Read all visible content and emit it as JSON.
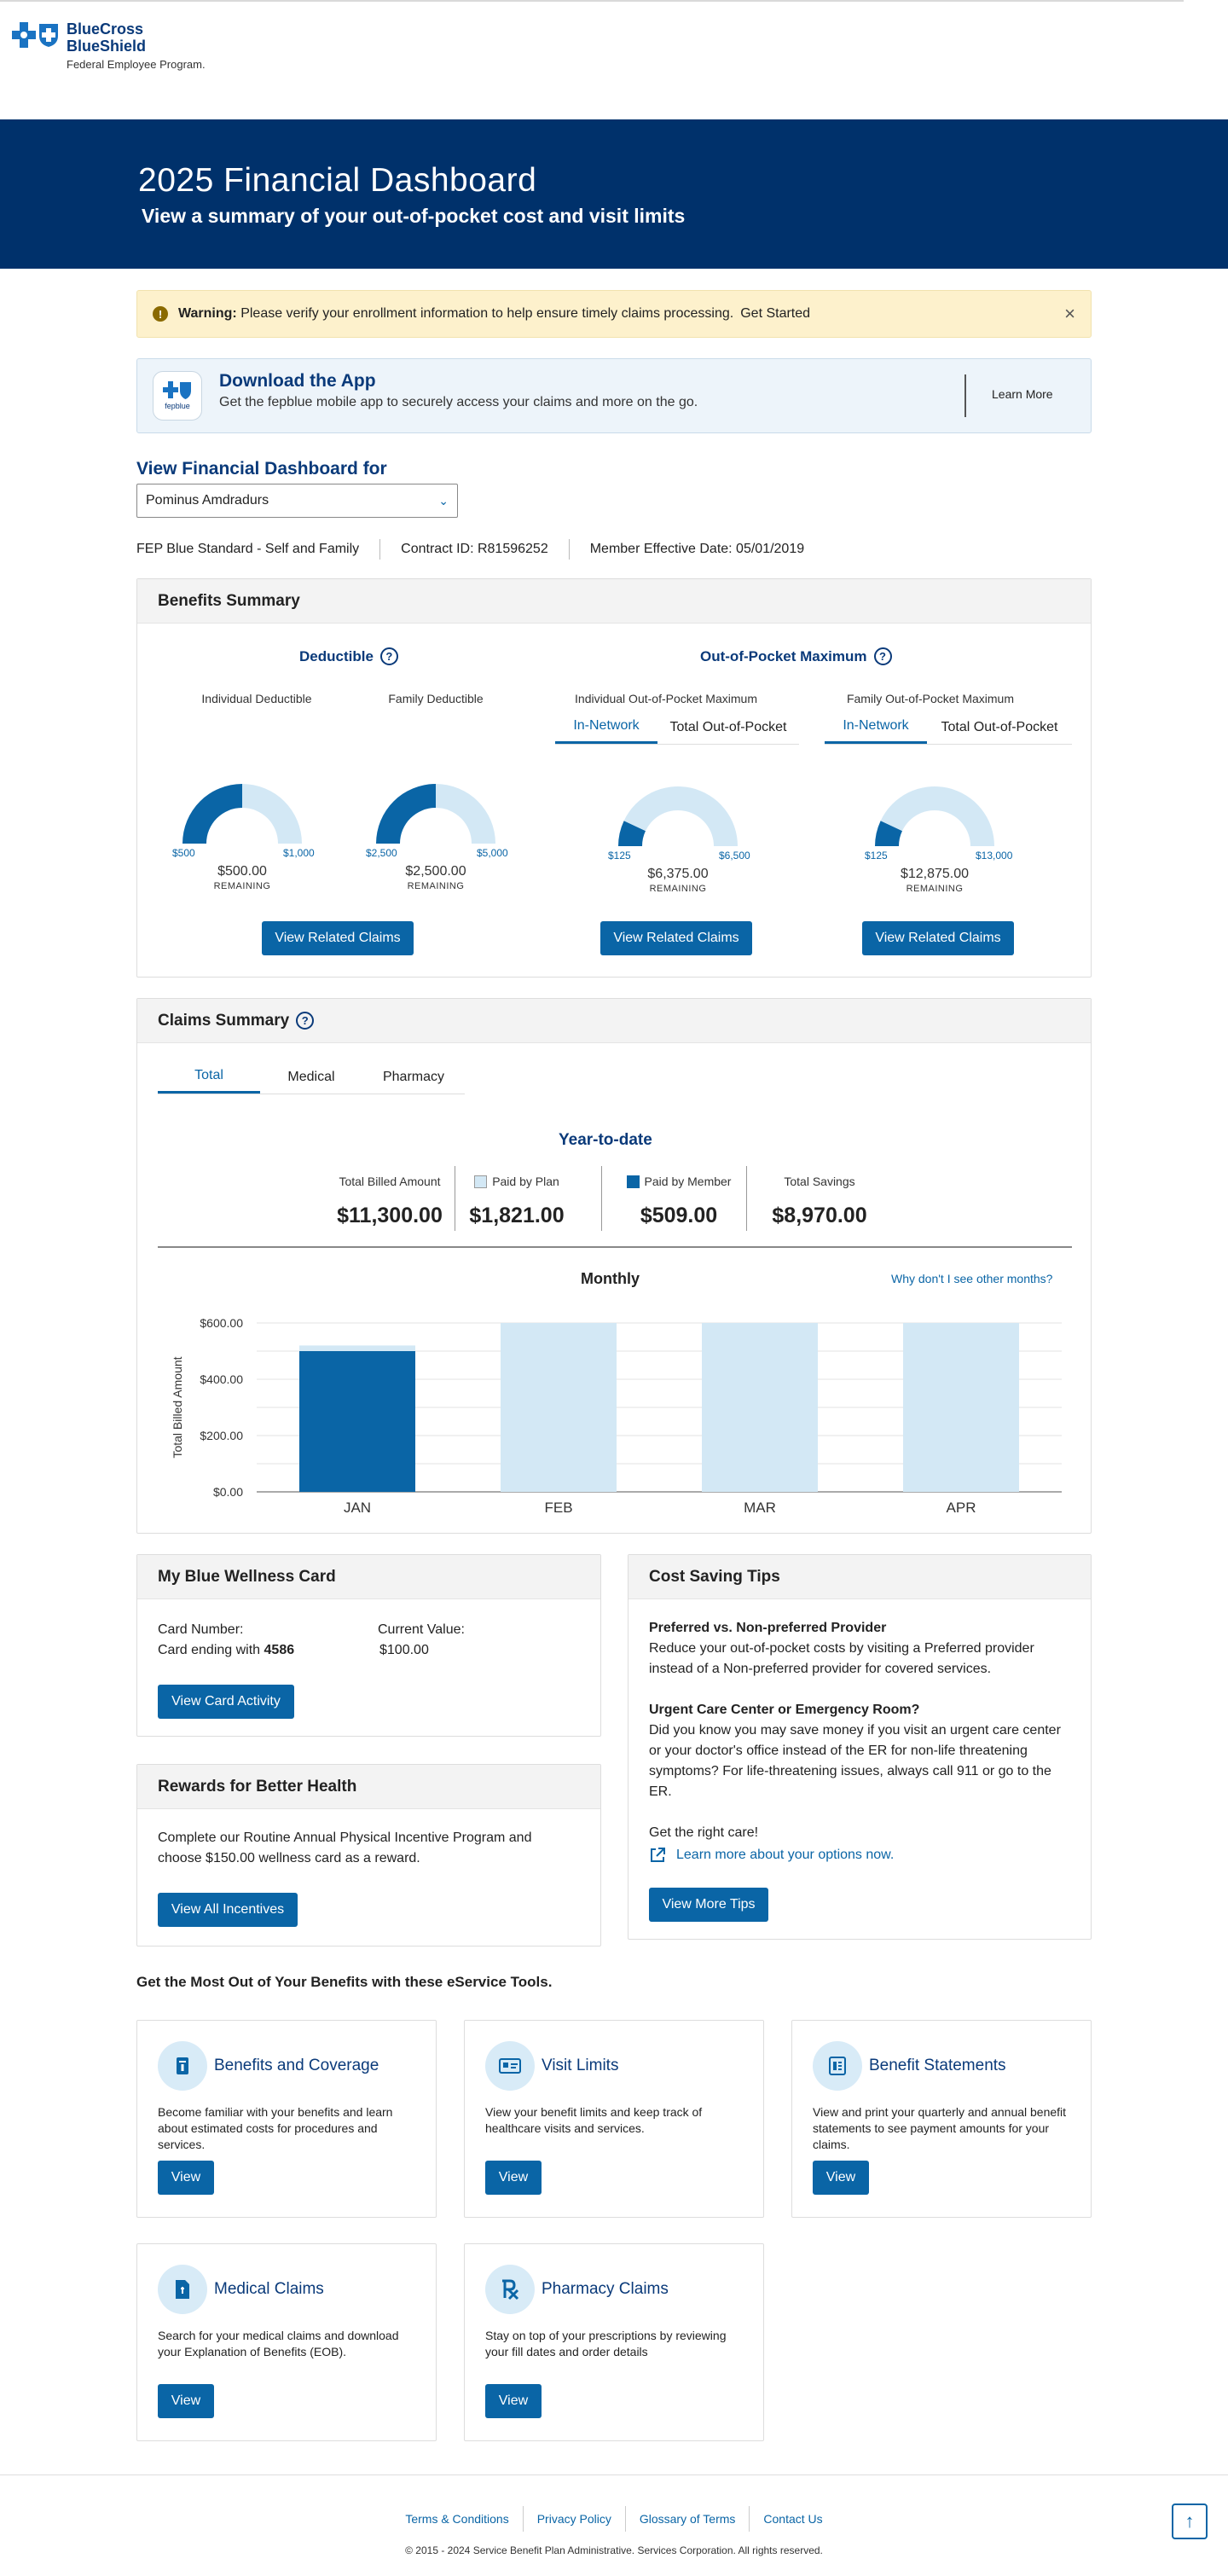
{
  "brand": {
    "line1": "BlueCross",
    "line2": "BlueShield",
    "line3": "Federal Employee Program."
  },
  "hero": {
    "title": "2025 Financial Dashboard",
    "subtitle": "View a summary of your out-of-pocket cost and visit limits"
  },
  "warning": {
    "strong": "Warning:",
    "text": "Please verify your enrollment information to help ensure timely claims processing.",
    "link": "Get Started",
    "close": "×"
  },
  "app_banner": {
    "icon_label": "fepblue",
    "title": "Download the App",
    "text": "Get the fepblue mobile app to securely access your claims and more on the go.",
    "link": "Learn More"
  },
  "member_select": {
    "label": "View Financial Dashboard for",
    "value": "Pominus Amdradurs"
  },
  "meta": {
    "plan": "FEP Blue Standard - Self and Family",
    "contract": "Contract ID: R81596252",
    "effective": "Member Effective Date:  05/01/2019"
  },
  "benefits": {
    "title": "Benefits Summary",
    "deductible_title": "Deductible",
    "oop_title": "Out-of-Pocket Maximum",
    "remaining_label": "REMAINING",
    "button": "View Related Claims",
    "gauges": [
      {
        "label": "Individual Deductible",
        "min": "$500",
        "max": "$1,000",
        "remaining": "$500.00",
        "fraction": 0.5
      },
      {
        "label": "Family Deductible",
        "min": "$2,500",
        "max": "$5,000",
        "remaining": "$2,500.00",
        "fraction": 0.5
      },
      {
        "label": "Individual Out-of-Pocket Maximum",
        "tab1": "In-Network",
        "tab2": "Total Out-of-Pocket",
        "min": "$125",
        "max": "$6,500",
        "remaining": "$6,375.00",
        "fraction": 0.14
      },
      {
        "label": "Family Out-of-Pocket Maximum",
        "tab1": "In-Network",
        "tab2": "Total Out-of-Pocket",
        "min": "$125",
        "max": "$13,000",
        "remaining": "$12,875.00",
        "fraction": 0.14
      }
    ]
  },
  "claims": {
    "title": "Claims Summary",
    "tabs": [
      "Total",
      "Medical",
      "Pharmacy"
    ],
    "ytd_title": "Year-to-date",
    "ytd": [
      {
        "label": "Total Billed Amount",
        "value": "$11,300.00"
      },
      {
        "label": "Paid by Plan",
        "value": "$1,821.00"
      },
      {
        "label": "Paid by Member",
        "value": "$509.00"
      },
      {
        "label": "Total Savings",
        "value": "$8,970.00"
      }
    ],
    "monthly_title": "Monthly",
    "monthly_link": "Why don't I see other months?"
  },
  "chart_data": {
    "type": "bar",
    "title": "Monthly",
    "ylabel": "Total Billed Amount",
    "categories": [
      "JAN",
      "FEB",
      "MAR",
      "APR"
    ],
    "ylim": [
      0,
      600
    ],
    "yticks": [
      "$0.00",
      "$200.00",
      "$400.00",
      "$600.00"
    ],
    "ytick_values": [
      0,
      200,
      400,
      600
    ],
    "series": [
      {
        "values": [
          500,
          0,
          0,
          0
        ],
        "color": "#0a65a6"
      },
      {
        "values": [
          20,
          600,
          600,
          600
        ],
        "color": "#d3e8f5"
      }
    ]
  },
  "wellness": {
    "title": "My Blue Wellness Card",
    "card_label": "Card Number:",
    "card_prefix": "Card ending with",
    "card_last4": "4586",
    "value_label": "Current Value:",
    "value": "$100.00",
    "button": "View Card Activity"
  },
  "rewards": {
    "title": "Rewards for Better Health",
    "text": "Complete our Routine Annual Physical Incentive Program and choose $150.00 wellness card as a reward.",
    "button": "View All Incentives"
  },
  "tips": {
    "title": "Cost Saving Tips",
    "t1_title": "Preferred vs. Non-preferred Provider",
    "t1_text": "Reduce your out-of-pocket costs by visiting a Preferred provider instead of a Non-preferred provider for covered services.",
    "t2_title": "Urgent Care Center or Emergency Room?",
    "t2_text": "Did you know you may save money if you visit an urgent care center or your doctor's office instead of the ER for non-life threatening symptoms? For life-threatening issues, always call 911 or go to the ER.",
    "t3_text": "Get the right care!",
    "link": "Learn more about your options now.",
    "button": "View More Tips"
  },
  "tools": {
    "heading": "Get the Most Out of Your Benefits with these eService Tools.",
    "view": "View",
    "items": [
      {
        "title": "Benefits and Coverage",
        "text": "Become familiar with your benefits and learn about estimated costs for procedures and services.",
        "icon": "book-icon"
      },
      {
        "title": "Visit Limits",
        "text": "View your benefit limits and keep track of healthcare visits and services.",
        "icon": "id-card-icon"
      },
      {
        "title": "Benefit Statements",
        "text": "View and print your quarterly and annual benefit statements to see payment amounts for your claims.",
        "icon": "statement-icon"
      },
      {
        "title": "Medical Claims",
        "text": "Search for your medical claims and download your Explanation of Benefits (EOB).",
        "icon": "document-icon"
      },
      {
        "title": "Pharmacy Claims",
        "text": "Stay on top of your prescriptions by reviewing your fill dates and order details",
        "icon": "rx-icon"
      }
    ]
  },
  "footer": {
    "links": [
      "Terms & Conditions",
      "Privacy Policy",
      "Glossary of Terms",
      "Contact Us"
    ],
    "copyright": "© 2015 - 2024 Service Benefit Plan Administrative. Services Corporation. All rights reserved."
  }
}
